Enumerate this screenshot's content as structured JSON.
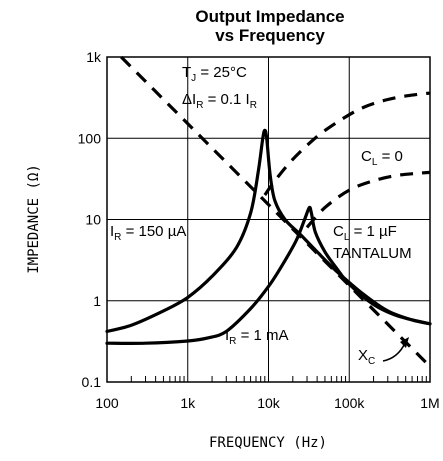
{
  "chart_data": {
    "type": "line",
    "title_line1": "Output Impedance",
    "title_line2": "vs Frequency",
    "xlabel": "FREQUENCY (Hz)",
    "ylabel": "IMPEDANCE (Ω)",
    "x_scale": "log",
    "y_scale": "log",
    "xlim": [
      100,
      1000000
    ],
    "ylim": [
      0.1,
      1000
    ],
    "x_ticks": [
      {
        "value": 100,
        "label": "100"
      },
      {
        "value": 1000,
        "label": "1k"
      },
      {
        "value": 10000,
        "label": "10k"
      },
      {
        "value": 100000,
        "label": "100k"
      },
      {
        "value": 1000000,
        "label": "1M"
      }
    ],
    "y_ticks": [
      {
        "value": 1000,
        "label": "1k"
      },
      {
        "value": 100,
        "label": "100"
      },
      {
        "value": 10,
        "label": "10"
      },
      {
        "value": 1,
        "label": "1"
      },
      {
        "value": 0.1,
        "label": "0.1"
      }
    ],
    "grid": true,
    "conditions": {
      "tj": {
        "main": "T",
        "sub": "J",
        "rest": " = 25°C"
      },
      "delta_ir": {
        "main": "ΔI",
        "sub": "R",
        "rest": " = 0.1 I",
        "sub2": "R"
      }
    },
    "labels": {
      "cl_zero": {
        "main": "C",
        "sub": "L",
        "rest": " = 0"
      },
      "cl_one": {
        "main": "C",
        "sub": "L",
        "rest": " = 1 µF"
      },
      "tantalum": "TANTALUM",
      "ir_150": {
        "main": "I",
        "sub": "R",
        "rest": " = 150 µA"
      },
      "ir_1ma": {
        "main": "I",
        "sub": "R",
        "rest": " = 1 mA"
      },
      "xc": {
        "main": "X",
        "sub": "C"
      }
    },
    "series": [
      {
        "name": "IR = 150 µA, CL = 1 µF",
        "style": "solid",
        "points": [
          [
            100,
            0.42
          ],
          [
            200,
            0.5
          ],
          [
            500,
            0.75
          ],
          [
            1000,
            1.1
          ],
          [
            2000,
            2
          ],
          [
            4000,
            4.5
          ],
          [
            6000,
            12
          ],
          [
            7500,
            40
          ],
          [
            8500,
            100
          ],
          [
            9000,
            125
          ],
          [
            9500,
            100
          ],
          [
            10500,
            35
          ],
          [
            12000,
            17
          ],
          [
            16000,
            10
          ],
          [
            25000,
            6.5
          ],
          [
            40000,
            4
          ],
          [
            70000,
            2.3
          ],
          [
            150000,
            1.2
          ],
          [
            300000,
            0.75
          ],
          [
            600000,
            0.58
          ],
          [
            1000000,
            0.52
          ]
        ]
      },
      {
        "name": "IR = 1 mA, CL = 1 µF",
        "style": "solid",
        "points": [
          [
            100,
            0.3
          ],
          [
            300,
            0.3
          ],
          [
            1000,
            0.32
          ],
          [
            1800,
            0.35
          ],
          [
            3000,
            0.42
          ],
          [
            6000,
            0.8
          ],
          [
            10000,
            1.5
          ],
          [
            15000,
            2.8
          ],
          [
            22000,
            5.5
          ],
          [
            28000,
            10
          ],
          [
            32000,
            14
          ],
          [
            34000,
            12
          ],
          [
            38000,
            7
          ],
          [
            50000,
            4
          ],
          [
            70000,
            2.5
          ],
          [
            100000,
            1.6
          ],
          [
            200000,
            0.9
          ],
          [
            400000,
            0.65
          ],
          [
            1000000,
            0.52
          ]
        ]
      },
      {
        "name": "IR = 150 µA, CL = 0",
        "style": "dashed",
        "points": [
          [
            9000,
            20
          ],
          [
            12000,
            30
          ],
          [
            20000,
            55
          ],
          [
            40000,
            105
          ],
          [
            80000,
            170
          ],
          [
            150000,
            240
          ],
          [
            300000,
            300
          ],
          [
            600000,
            340
          ],
          [
            1000000,
            360
          ]
        ]
      },
      {
        "name": "IR = 1 mA, CL = 0",
        "style": "dashed",
        "points": [
          [
            30000,
            8
          ],
          [
            50000,
            14
          ],
          [
            100000,
            23
          ],
          [
            200000,
            30
          ],
          [
            400000,
            35
          ],
          [
            700000,
            37
          ],
          [
            1000000,
            38
          ]
        ]
      },
      {
        "name": "XC",
        "style": "dashed",
        "points": [
          [
            150,
            1000
          ],
          [
            1000000,
            0.155
          ]
        ]
      }
    ]
  }
}
